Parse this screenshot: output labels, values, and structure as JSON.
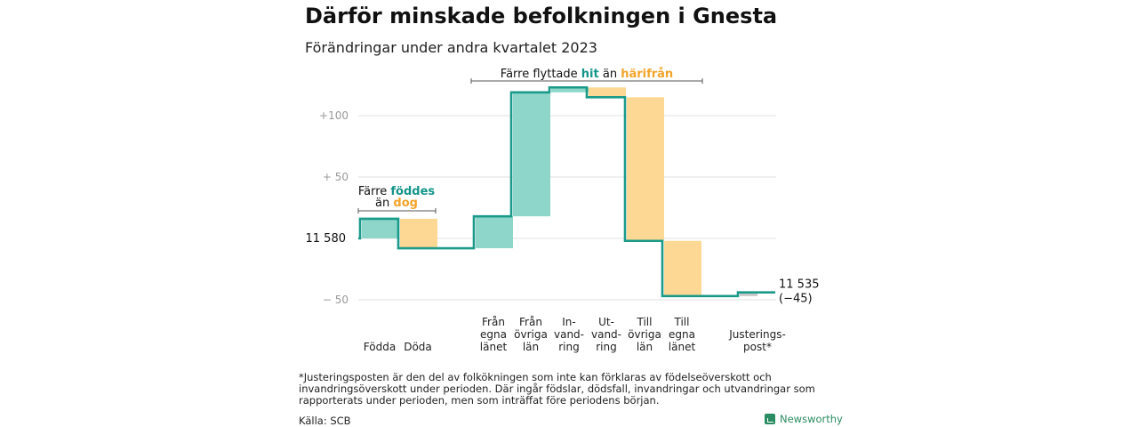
{
  "header": {
    "title": "Därför minskade befolkningen i Gnesta",
    "subtitle": "Förändringar under andra kvartalet 2023"
  },
  "colors": {
    "increase": "#8dd6c9",
    "decrease": "#fdd894",
    "line": "#1b9a8a",
    "adjust": "#c8c8c8",
    "grid": "#e1e1e1",
    "teal_text": "#14958a",
    "orange_text": "#f3a42a"
  },
  "chart_data": {
    "type": "waterfall",
    "start": 11580,
    "start_label": "11 580",
    "end": 11535,
    "end_label": "11 535",
    "end_change_label": "(−45)",
    "categories": [
      [
        "Födda"
      ],
      [
        "Döda"
      ],
      [
        "Från",
        "egna",
        "länet"
      ],
      [
        "Från",
        "övriga",
        "län"
      ],
      [
        "In-",
        "vand-",
        "ring"
      ],
      [
        "Ut-",
        "vand-",
        "ring"
      ],
      [
        "Till",
        "övriga",
        "län"
      ],
      [
        "Till",
        "egna",
        "länet"
      ],
      [
        "Justerings-",
        "post*"
      ]
    ],
    "changes": [
      16,
      -24,
      26,
      101,
      4,
      -8,
      -117,
      -45,
      3
    ],
    "kinds": [
      "inflow",
      "outflow",
      "inflow",
      "inflow",
      "inflow",
      "outflow",
      "outflow",
      "outflow",
      "adjustment"
    ],
    "y_ticks": [
      {
        "value": 100,
        "label": "+100"
      },
      {
        "value": 50,
        "label": "+  50"
      },
      {
        "value": 0,
        "label": "11 580"
      },
      {
        "value": -50,
        "label": "−  50"
      }
    ],
    "annotations": {
      "births": {
        "line1": "Färre",
        "highlight1": "föddes",
        "line2": "än",
        "highlight2": "dog"
      },
      "moves": {
        "prefix": "Färre flyttade",
        "highlight1": "hit",
        "mid": "än",
        "highlight2": "härifrån"
      }
    }
  },
  "footer": {
    "footnote": "*Justeringsposten är den del av folkökningen som inte kan förklaras av födelseöverskott och invandringsöverskott under perioden. Där ingår födslar, dödsfall, invandringar och utvandringar som rapporterats under perioden, men som inträffat före periodens början.",
    "source": "Källa: SCB",
    "logo": "Newsworthy"
  }
}
